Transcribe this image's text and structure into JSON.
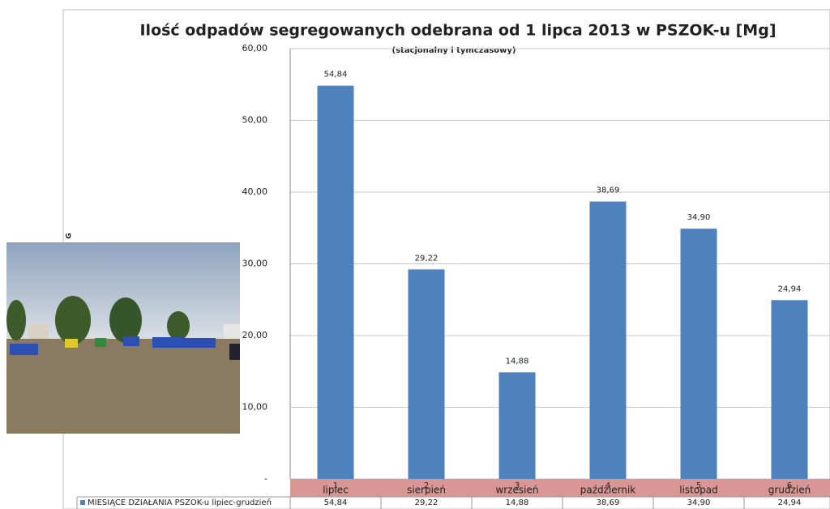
{
  "chart_data": {
    "type": "bar",
    "title": "Ilość odpadów segregowanych odebrana od 1 lipca 2013 w PSZOK-u [Mg]",
    "subtitle": "(stacjonalny i tymczasowy)",
    "side_label": "G",
    "categories": [
      "lipiec",
      "sierpień",
      "wrzesień",
      "październik",
      "listopad",
      "grudzień"
    ],
    "category_numbers": [
      "1",
      "2",
      "3",
      "4",
      "5",
      "6"
    ],
    "series": [
      {
        "name": "MIESIĄCE DZIAŁANIA PSZOK-u lipiec-grudzień",
        "color": "#4f81bd",
        "values": [
          54.84,
          29.22,
          14.88,
          38.69,
          34.9,
          24.94
        ],
        "value_labels": [
          "54,84",
          "29,22",
          "14,88",
          "38,69",
          "34,90",
          "24,94"
        ]
      }
    ],
    "ylim": [
      0,
      60
    ],
    "yticks": [
      {
        "value": 0,
        "label": "-"
      },
      {
        "value": 10,
        "label": "10,00"
      },
      {
        "value": 20,
        "label": "20,00"
      },
      {
        "value": 30,
        "label": "30,00"
      },
      {
        "value": 40,
        "label": "40,00"
      },
      {
        "value": 50,
        "label": "50,00"
      },
      {
        "value": 60,
        "label": "60,00"
      }
    ],
    "grid": true
  }
}
